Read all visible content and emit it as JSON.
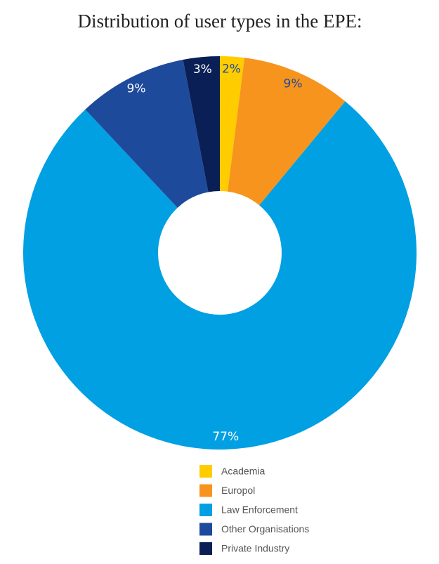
{
  "chart_data": {
    "type": "donut",
    "title": "Distribution of user types in the EPE:",
    "categories": [
      "Academia",
      "Europol",
      "Law Enforcement",
      "Other Organisations",
      "Private Industry"
    ],
    "values": [
      2,
      9,
      77,
      9,
      3
    ],
    "value_labels": [
      "2%",
      "9%",
      "77%",
      "9%",
      "3%"
    ],
    "colors": [
      "#ffcc00",
      "#f7941d",
      "#00a0e3",
      "#1e4a9c",
      "#0a1f55"
    ],
    "label_colors": [
      "#1e4a9c",
      "#1e4a9c",
      "#ffffff",
      "#ffffff",
      "#ffffff"
    ],
    "legend": "bottom"
  }
}
